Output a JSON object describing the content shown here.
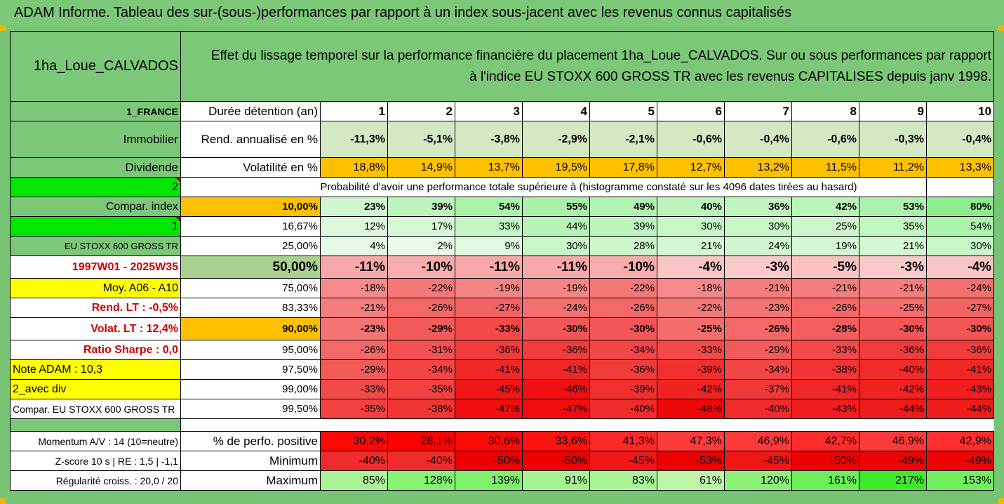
{
  "title": "ADAM Informe. Tableau des sur-(sous-)performances par rapport à un index sous-jacent avec les revenus connus capitalisés",
  "asset_name": "1ha_Loue_CALVADOS",
  "description_line1": "Effet du lissage temporel sur la performance financière du placement 1ha_Loue_CALVADOS. Sur ou sous performances par rapport",
  "description_line2": "à l'indice EU STOXX 600 GROSS TR avec les revenus CAPITALISES depuis janv 1998.",
  "left_labels": {
    "country": "1_FRANCE",
    "category": "Immobilier",
    "dividend": "Dividende",
    "two": "2",
    "compar_index": "Compar. index",
    "one": "1",
    "index_name": "EU STOXX 600 GROSS TR",
    "period": "1997W01 - 2025W35",
    "moy": "Moy. A06 - A10",
    "rend_lt": "Rend. LT :   -0,5%",
    "volat_lt": "Volat. LT :   12,4%",
    "sharpe": "Ratio Sharpe :   0,0",
    "note": "Note ADAM : 10,3",
    "avec_div": "2_avec div",
    "compar_eu": "Compar. EU STOXX 600 GROSS TR",
    "momentum": "Momentum A/V : 14 (10=neutre)",
    "zscore": "Z-score 10 s  |  RE : 1,5  |  -1,1",
    "regularite": "Régularité croiss. : 20,0 / 20"
  },
  "row_labels": {
    "duree": "Durée détention (an)",
    "rend": "Rend. annualisé en %",
    "volat": "Volatilité en %",
    "proba": "Probabilité d'avoir une performance totale supérieure à (histogramme constaté sur les 4096 dates tirées au hasard)",
    "perf_pos": "% de perfo. positive",
    "minimum": "Minimum",
    "maximum": "Maximum"
  },
  "years": [
    "1",
    "2",
    "3",
    "4",
    "5",
    "6",
    "7",
    "8",
    "9",
    "10"
  ],
  "rend": [
    "-11,3%",
    "-5,1%",
    "-3,8%",
    "-2,9%",
    "-2,1%",
    "-0,6%",
    "-0,4%",
    "-0,6%",
    "-0,3%",
    "-0,4%"
  ],
  "volat": [
    "18,8%",
    "14,9%",
    "13,7%",
    "19,5%",
    "17,8%",
    "12,7%",
    "13,2%",
    "11,5%",
    "11,2%",
    "13,3%"
  ],
  "proba_rows": [
    {
      "threshold": "10,00%",
      "values": [
        "23%",
        "39%",
        "54%",
        "55%",
        "49%",
        "40%",
        "36%",
        "42%",
        "53%",
        "80%"
      ]
    },
    {
      "threshold": "16,67%",
      "values": [
        "12%",
        "17%",
        "33%",
        "44%",
        "39%",
        "30%",
        "30%",
        "25%",
        "35%",
        "54%"
      ]
    },
    {
      "threshold": "25,00%",
      "values": [
        "4%",
        "2%",
        "9%",
        "30%",
        "28%",
        "21%",
        "24%",
        "19%",
        "21%",
        "30%"
      ]
    },
    {
      "threshold": "50,00%",
      "values": [
        "-11%",
        "-10%",
        "-11%",
        "-11%",
        "-10%",
        "-4%",
        "-3%",
        "-5%",
        "-3%",
        "-4%"
      ]
    },
    {
      "threshold": "75,00%",
      "values": [
        "-18%",
        "-22%",
        "-19%",
        "-19%",
        "-22%",
        "-18%",
        "-21%",
        "-21%",
        "-21%",
        "-24%"
      ]
    },
    {
      "threshold": "83,33%",
      "values": [
        "-21%",
        "-26%",
        "-27%",
        "-24%",
        "-26%",
        "-22%",
        "-23%",
        "-26%",
        "-25%",
        "-27%"
      ]
    },
    {
      "threshold": "90,00%",
      "values": [
        "-23%",
        "-29%",
        "-33%",
        "-30%",
        "-30%",
        "-25%",
        "-26%",
        "-28%",
        "-30%",
        "-30%"
      ]
    },
    {
      "threshold": "95,00%",
      "values": [
        "-26%",
        "-31%",
        "-36%",
        "-36%",
        "-34%",
        "-33%",
        "-29%",
        "-33%",
        "-36%",
        "-36%"
      ]
    },
    {
      "threshold": "97,50%",
      "values": [
        "-29%",
        "-34%",
        "-41%",
        "-41%",
        "-36%",
        "-39%",
        "-34%",
        "-38%",
        "-40%",
        "-41%"
      ]
    },
    {
      "threshold": "99,00%",
      "values": [
        "-33%",
        "-35%",
        "-45%",
        "-46%",
        "-39%",
        "-42%",
        "-37%",
        "-41%",
        "-42%",
        "-43%"
      ]
    },
    {
      "threshold": "99,50%",
      "values": [
        "-35%",
        "-38%",
        "-47%",
        "-47%",
        "-40%",
        "-48%",
        "-40%",
        "-43%",
        "-44%",
        "-44%"
      ]
    }
  ],
  "perf_pos": [
    "30,2%",
    "28,1%",
    "30,6%",
    "33,6%",
    "41,3%",
    "47,3%",
    "46,9%",
    "42,7%",
    "46,9%",
    "42,9%"
  ],
  "minimum": [
    "-40%",
    "-40%",
    "-50%",
    "-50%",
    "-45%",
    "-53%",
    "-45%",
    "-50%",
    "-49%",
    "-49%"
  ],
  "maximum": [
    "85%",
    "128%",
    "139%",
    "91%",
    "83%",
    "61%",
    "120%",
    "161%",
    "217%",
    "153%"
  ],
  "colors": {
    "header_green": "#7cc878",
    "orange": "#ffc000",
    "yellow": "#ffff00",
    "bright_green": "#00e600",
    "label_red": "#d00000"
  }
}
